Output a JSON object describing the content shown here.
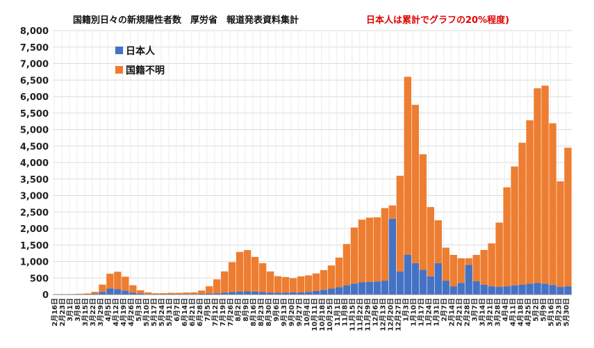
{
  "chart_data": {
    "type": "bar",
    "title": "国籍別日々の新規陽性者数　厚労省　報道発表資料集計",
    "title_note": "日本人は累計でグラフの20%程度)",
    "xlabel": "",
    "ylabel": "",
    "ylim": [
      0,
      8000
    ],
    "grid": true,
    "legend_position": "top-left",
    "stacked": true,
    "y_ticks": [
      "0",
      "500",
      "1,000",
      "1,500",
      "2,000",
      "2,500",
      "3,000",
      "3,500",
      "4,000",
      "4,500",
      "5,000",
      "5,500",
      "6,000",
      "6,500",
      "7,000",
      "7,500",
      "8,000"
    ],
    "x_tick_labels": [
      "2月16日",
      "2月23日",
      "3月1日",
      "3月8日",
      "3月15日",
      "3月22日",
      "3月29日",
      "4月5日",
      "4月12日",
      "4月19日",
      "4月26日",
      "5月3日",
      "5月10日",
      "5月17日",
      "5月24日",
      "5月31日",
      "6月7日",
      "6月14日",
      "6月21日",
      "6月28日",
      "7月5日",
      "7月12日",
      "7月19日",
      "7月26日",
      "8月2日",
      "8月9日",
      "8月16日",
      "8月23日",
      "8月30日",
      "9月6日",
      "9月13日",
      "9月20日",
      "9月27日",
      "10月4日",
      "10月11日",
      "10月18日",
      "10月25日",
      "11月1日",
      "11月8日",
      "11月15日",
      "11月22日",
      "11月29日",
      "12月6日",
      "12月13日",
      "12月20日",
      "12月27日",
      "1月3日",
      "1月10日",
      "1月17日",
      "1月24日",
      "1月31日",
      "2月7日",
      "2月14日",
      "2月21日",
      "2月28日",
      "3月7日",
      "3月14日",
      "3月21日",
      "3月28日",
      "4月4日",
      "4月11日",
      "4月18日",
      "4月25日",
      "5月2日",
      "5月9日",
      "5月16日",
      "5月23日",
      "5月30日"
    ],
    "weekly_points": [
      {
        "japanese": 0,
        "unknown": 2
      },
      {
        "japanese": 2,
        "unknown": 6
      },
      {
        "japanese": 3,
        "unknown": 10
      },
      {
        "japanese": 5,
        "unknown": 15
      },
      {
        "japanese": 7,
        "unknown": 25
      },
      {
        "japanese": 20,
        "unknown": 60
      },
      {
        "japanese": 80,
        "unknown": 220
      },
      {
        "japanese": 180,
        "unknown": 450
      },
      {
        "japanese": 160,
        "unknown": 530
      },
      {
        "japanese": 120,
        "unknown": 420
      },
      {
        "japanese": 60,
        "unknown": 220
      },
      {
        "japanese": 30,
        "unknown": 100
      },
      {
        "japanese": 15,
        "unknown": 50
      },
      {
        "japanese": 8,
        "unknown": 30
      },
      {
        "japanese": 10,
        "unknown": 30
      },
      {
        "japanese": 10,
        "unknown": 40
      },
      {
        "japanese": 12,
        "unknown": 38
      },
      {
        "japanese": 15,
        "unknown": 45
      },
      {
        "japanese": 15,
        "unknown": 50
      },
      {
        "japanese": 20,
        "unknown": 100
      },
      {
        "japanese": 30,
        "unknown": 220
      },
      {
        "japanese": 40,
        "unknown": 420
      },
      {
        "japanese": 60,
        "unknown": 640
      },
      {
        "japanese": 80,
        "unknown": 900
      },
      {
        "japanese": 90,
        "unknown": 1200
      },
      {
        "japanese": 95,
        "unknown": 1250
      },
      {
        "japanese": 90,
        "unknown": 1050
      },
      {
        "japanese": 80,
        "unknown": 870
      },
      {
        "japanese": 60,
        "unknown": 640
      },
      {
        "japanese": 55,
        "unknown": 500
      },
      {
        "japanese": 60,
        "unknown": 470
      },
      {
        "japanese": 65,
        "unknown": 430
      },
      {
        "japanese": 70,
        "unknown": 480
      },
      {
        "japanese": 80,
        "unknown": 500
      },
      {
        "japanese": 110,
        "unknown": 530
      },
      {
        "japanese": 140,
        "unknown": 600
      },
      {
        "japanese": 180,
        "unknown": 700
      },
      {
        "japanese": 220,
        "unknown": 900
      },
      {
        "japanese": 280,
        "unknown": 1250
      },
      {
        "japanese": 330,
        "unknown": 1700
      },
      {
        "japanese": 370,
        "unknown": 1900
      },
      {
        "japanese": 380,
        "unknown": 1950
      },
      {
        "japanese": 390,
        "unknown": 1950
      },
      {
        "japanese": 420,
        "unknown": 2200
      },
      {
        "japanese": 2300,
        "unknown": 400
      },
      {
        "japanese": 700,
        "unknown": 2900
      },
      {
        "japanese": 1200,
        "unknown": 5400
      },
      {
        "japanese": 950,
        "unknown": 4800
      },
      {
        "japanese": 750,
        "unknown": 3500
      },
      {
        "japanese": 550,
        "unknown": 2100
      },
      {
        "japanese": 950,
        "unknown": 1300
      },
      {
        "japanese": 420,
        "unknown": 1000
      },
      {
        "japanese": 250,
        "unknown": 950
      },
      {
        "japanese": 350,
        "unknown": 750
      },
      {
        "japanese": 900,
        "unknown": 200
      },
      {
        "japanese": 400,
        "unknown": 800
      },
      {
        "japanese": 300,
        "unknown": 1050
      },
      {
        "japanese": 250,
        "unknown": 1300
      },
      {
        "japanese": 230,
        "unknown": 1950
      },
      {
        "japanese": 250,
        "unknown": 3000
      },
      {
        "japanese": 280,
        "unknown": 3600
      },
      {
        "japanese": 300,
        "unknown": 4300
      },
      {
        "japanese": 330,
        "unknown": 4950
      },
      {
        "japanese": 350,
        "unknown": 5900
      },
      {
        "japanese": 330,
        "unknown": 6000
      },
      {
        "japanese": 290,
        "unknown": 4900
      },
      {
        "japanese": 230,
        "unknown": 3200
      },
      {
        "japanese": 250,
        "unknown": 4200
      }
    ],
    "series": [
      {
        "name": "日本人",
        "color": "#4472c4"
      },
      {
        "name": "国籍不明",
        "color": "#ed7d31"
      }
    ]
  }
}
